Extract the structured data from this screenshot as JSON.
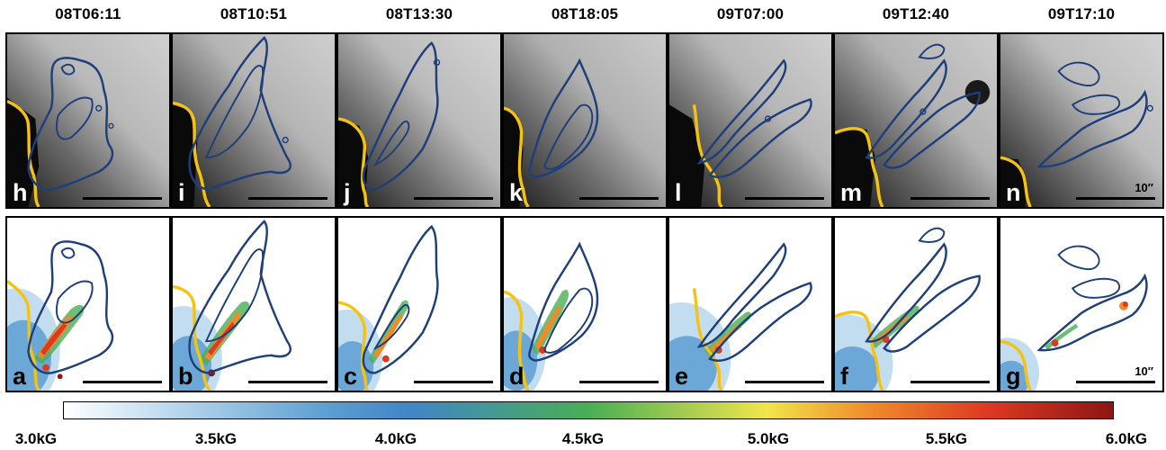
{
  "columns": [
    "08T06:11",
    "08T10:51",
    "08T13:30",
    "08T18:05",
    "09T07:00",
    "09T12:40",
    "09T17:10"
  ],
  "top_labels": [
    "h",
    "i",
    "j",
    "k",
    "l",
    "m",
    "n"
  ],
  "bottom_labels": [
    "a",
    "b",
    "c",
    "d",
    "e",
    "f",
    "g"
  ],
  "scale_label": "10″",
  "colorbar": {
    "ticks": [
      "3.0kG",
      "3.5kG",
      "4.0kG",
      "4.5kG",
      "5.0kG",
      "5.5kG",
      "6.0kG"
    ],
    "colors": {
      "low": "#ffffff",
      "mid_blue": "#3f86c8",
      "green": "#49ae55",
      "yellow": "#f1e54a",
      "orange": "#f08a2b",
      "red": "#de3a22",
      "high": "#8e1515"
    }
  },
  "contour_color": "#1f3f7a",
  "boundary_color": "#f5c211"
}
